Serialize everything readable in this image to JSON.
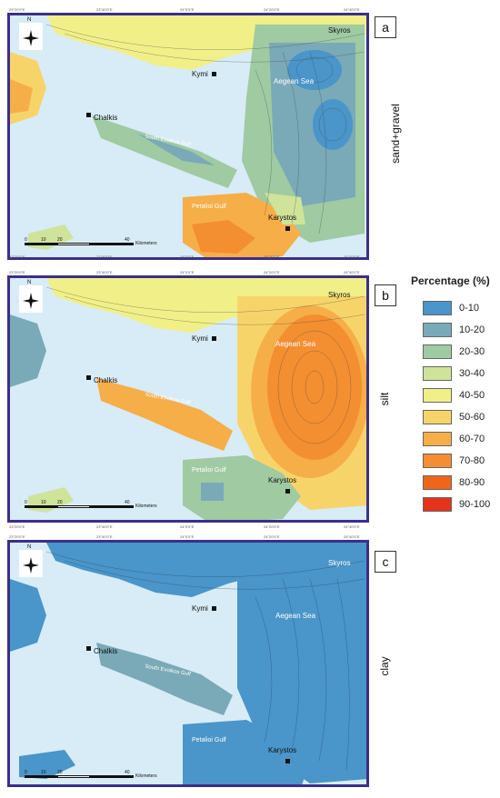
{
  "legend": {
    "title": "Percentage (%)",
    "items": [
      {
        "label": "0-10",
        "color": "#4a95c9"
      },
      {
        "label": "10-20",
        "color": "#7aa9b8"
      },
      {
        "label": "20-30",
        "color": "#9fcaa2"
      },
      {
        "label": "30-40",
        "color": "#cfe39a"
      },
      {
        "label": "40-50",
        "color": "#f1ef88"
      },
      {
        "label": "50-60",
        "color": "#f7d46a"
      },
      {
        "label": "60-70",
        "color": "#f6ae48"
      },
      {
        "label": "70-80",
        "color": "#f38e31"
      },
      {
        "label": "80-90",
        "color": "#ee6619"
      },
      {
        "label": "90-100",
        "color": "#e4341b"
      }
    ]
  },
  "panels": [
    {
      "letter": "a",
      "subtitle": "sand+gravel"
    },
    {
      "letter": "b",
      "subtitle": "silt"
    },
    {
      "letter": "c",
      "subtitle": "clay"
    }
  ],
  "places": {
    "skyros": "Skyros",
    "kymi": "Kymi",
    "aegean": "Aegean Sea",
    "chalkis": "Chalkis",
    "evoikos": "South Evoikos Gulf",
    "petalioi": "Petalioi Gulf",
    "karystos": "Karystos"
  },
  "scalebar": {
    "t0": "0",
    "t1": "10",
    "t2": "20",
    "t3": "40",
    "unit": "Kilometers"
  },
  "coords": {
    "lon": [
      "23°20'0\"E",
      "23°40'0\"E",
      "24°0'0\"E",
      "24°20'0\"E",
      "24°40'0\"E"
    ],
    "compass_n": "N"
  }
}
